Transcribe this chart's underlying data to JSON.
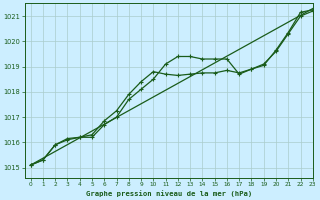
{
  "title": "Graphe pression niveau de la mer (hPa)",
  "background_color": "#cceeff",
  "grid_color": "#aacccc",
  "line_color": "#1a5c1a",
  "xlim": [
    -0.5,
    23
  ],
  "ylim": [
    1014.6,
    1021.5
  ],
  "yticks": [
    1015,
    1016,
    1017,
    1018,
    1019,
    1020,
    1021
  ],
  "xticks": [
    0,
    1,
    2,
    3,
    4,
    5,
    6,
    7,
    8,
    9,
    10,
    11,
    12,
    13,
    14,
    15,
    16,
    17,
    18,
    19,
    20,
    21,
    22,
    23
  ],
  "series_main": {
    "x": [
      0,
      1,
      2,
      3,
      4,
      5,
      6,
      7,
      8,
      9,
      10,
      11,
      12,
      13,
      14,
      15,
      16,
      17,
      18,
      19,
      20,
      21,
      22,
      23
    ],
    "y": [
      1015.1,
      1015.3,
      1015.9,
      1016.1,
      1016.2,
      1016.2,
      1016.7,
      1017.0,
      1017.7,
      1018.1,
      1018.5,
      1019.1,
      1019.4,
      1019.4,
      1019.3,
      1019.3,
      1019.3,
      1018.7,
      1018.9,
      1019.1,
      1019.6,
      1020.3,
      1021.0,
      1021.2
    ]
  },
  "series_mid": {
    "x": [
      0,
      1,
      2,
      3,
      4,
      5,
      6,
      7,
      8,
      9,
      10,
      11,
      12,
      13,
      14,
      15,
      16,
      17,
      18,
      19,
      20,
      21,
      22,
      23
    ],
    "y": [
      1015.1,
      1015.3,
      1015.9,
      1016.15,
      1016.2,
      1016.3,
      1016.85,
      1017.25,
      1017.9,
      1018.4,
      1018.8,
      1018.7,
      1018.65,
      1018.7,
      1018.75,
      1018.75,
      1018.85,
      1018.75,
      1018.9,
      1019.05,
      1019.65,
      1020.35,
      1021.15,
      1021.25
    ]
  },
  "series_straight": {
    "x": [
      0,
      23
    ],
    "y": [
      1015.1,
      1021.3
    ]
  }
}
